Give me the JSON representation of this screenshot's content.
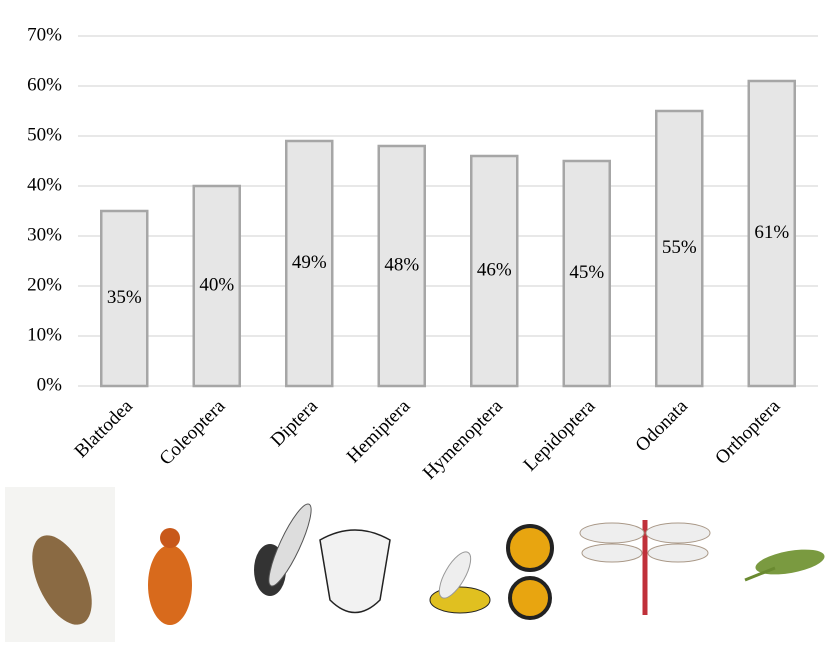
{
  "chart_data": {
    "type": "bar",
    "categories": [
      "Blattodea",
      "Coleoptera",
      "Diptera",
      "Hemiptera",
      "Hymenoptera",
      "Lepidoptera",
      "Odonata",
      "Orthoptera"
    ],
    "values": [
      35,
      40,
      49,
      48,
      46,
      45,
      55,
      61
    ],
    "value_labels": [
      "35%",
      "40%",
      "49%",
      "48%",
      "46%",
      "45%",
      "55%",
      "61%"
    ],
    "color": "#e6e6e6",
    "ylim": [
      0,
      70
    ],
    "yticks": [
      {
        "value": 0,
        "label": "0%"
      },
      {
        "value": 10,
        "label": "10%"
      },
      {
        "value": 20,
        "label": "20%"
      },
      {
        "value": 30,
        "label": "30%"
      },
      {
        "value": 40,
        "label": "40%"
      },
      {
        "value": 50,
        "label": "50%"
      },
      {
        "value": 60,
        "label": "60%"
      },
      {
        "value": 70,
        "label": "70%"
      }
    ],
    "grid": true
  }
}
